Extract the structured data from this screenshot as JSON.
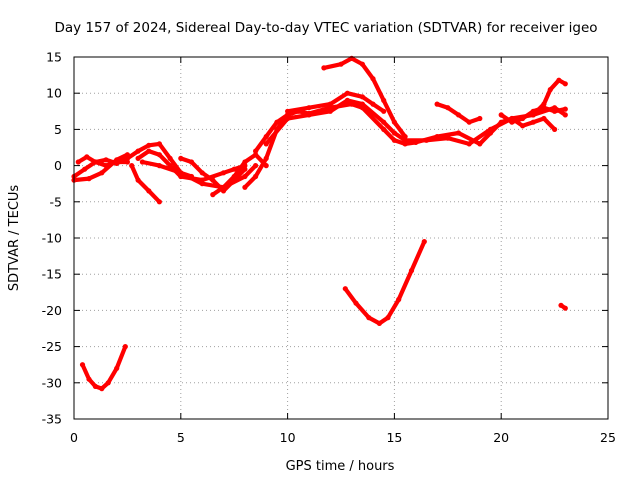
{
  "chart_data": {
    "type": "scatter",
    "title": "Day 157 of 2024, Sidereal Day-to-day VTEC variation (SDTVAR) for receiver igeo",
    "xlabel": "GPS time / hours",
    "ylabel": "SDTVAR / TECUs",
    "xlim": [
      0,
      25
    ],
    "ylim": [
      -35,
      15
    ],
    "xticks": [
      0,
      5,
      10,
      15,
      20,
      25
    ],
    "yticks": [
      -35,
      -30,
      -25,
      -20,
      -15,
      -10,
      -5,
      0,
      5,
      10,
      15
    ],
    "xtick_labels": [
      "0",
      "5",
      "10",
      "15",
      "20",
      "25"
    ],
    "ytick_labels": [
      "-35",
      "-30",
      "-25",
      "-20",
      "-15",
      "-10",
      "-5",
      "0",
      "5",
      "10",
      "15"
    ],
    "grid": true,
    "legend": "none",
    "color": "#ff0000",
    "series": [
      {
        "name": "trace-1",
        "x": [
          0.0,
          0.5,
          1.0,
          1.5,
          2.0,
          2.5
        ],
        "y": [
          -1.5,
          -0.5,
          0.5,
          0.0,
          0.5,
          0.5
        ]
      },
      {
        "name": "trace-2",
        "x": [
          0.0,
          0.7,
          1.3,
          2.0,
          2.5
        ],
        "y": [
          -2.0,
          -1.8,
          -1.0,
          0.8,
          1.5
        ]
      },
      {
        "name": "trace-3",
        "x": [
          0.2,
          0.6,
          1.0,
          1.5,
          2.0,
          2.5
        ],
        "y": [
          0.5,
          1.2,
          0.5,
          0.8,
          0.3,
          1.0
        ]
      },
      {
        "name": "trace-4",
        "x": [
          2.5,
          3.0,
          3.5,
          4.0,
          4.5,
          5.0,
          5.5
        ],
        "y": [
          1.0,
          2.0,
          2.8,
          3.0,
          1.0,
          -1.0,
          -1.5
        ]
      },
      {
        "name": "trace-5",
        "x": [
          2.7,
          3.0,
          3.5,
          4.0
        ],
        "y": [
          0.0,
          -2.0,
          -3.5,
          -5.0
        ]
      },
      {
        "name": "trace-6",
        "x": [
          3.0,
          3.5,
          4.0,
          4.5,
          5.0,
          6.0,
          7.0,
          7.5,
          8.0
        ],
        "y": [
          1.0,
          2.0,
          1.5,
          0.0,
          -1.5,
          -2.0,
          -1.0,
          -0.5,
          0.0
        ]
      },
      {
        "name": "trace-7",
        "x": [
          3.2,
          4.0,
          5.0,
          6.0,
          7.0,
          8.0,
          8.5
        ],
        "y": [
          0.5,
          0.0,
          -1.0,
          -2.5,
          -3.0,
          -1.5,
          0.0
        ]
      },
      {
        "name": "trace-8",
        "x": [
          5.0,
          5.5,
          6.0,
          6.5,
          7.0,
          7.5,
          8.0
        ],
        "y": [
          1.0,
          0.5,
          -1.0,
          -2.0,
          -3.5,
          -2.0,
          -0.5
        ]
      },
      {
        "name": "trace-9",
        "x": [
          6.5,
          7.0,
          7.5,
          8.0,
          8.5,
          9.0
        ],
        "y": [
          -4.0,
          -3.0,
          -1.5,
          0.5,
          1.5,
          0.0
        ]
      },
      {
        "name": "trace-10",
        "x": [
          8.0,
          8.5,
          9.0,
          9.5,
          10.0
        ],
        "y": [
          -3.0,
          -1.5,
          1.0,
          5.0,
          7.0
        ]
      },
      {
        "name": "trace-11",
        "x": [
          8.5,
          9.0,
          9.5,
          10.0,
          10.5,
          11.0,
          12.0,
          13.0,
          13.5,
          14.5,
          15.0,
          15.5,
          16.0,
          17.0,
          18.0,
          19.0,
          19.5,
          20.0,
          20.5,
          21.0,
          21.5,
          22.0,
          22.5
        ],
        "y": [
          2.0,
          4.0,
          6.0,
          7.0,
          7.5,
          7.2,
          8.0,
          8.5,
          8.0,
          5.0,
          3.5,
          3.0,
          3.2,
          4.0,
          4.5,
          3.0,
          4.5,
          6.0,
          6.5,
          5.5,
          6.0,
          6.5,
          5.0
        ]
      },
      {
        "name": "trace-12",
        "x": [
          9.0,
          10.0,
          11.0,
          12.0,
          12.8,
          13.5,
          14.5,
          15.0,
          15.5,
          16.5,
          17.5,
          18.5,
          19.5,
          20.5,
          21.5,
          22.5,
          23.0
        ],
        "y": [
          3.0,
          6.5,
          7.0,
          7.5,
          9.0,
          8.5,
          6.0,
          4.5,
          3.5,
          3.5,
          3.8,
          3.0,
          5.0,
          6.5,
          7.0,
          8.0,
          7.0
        ]
      },
      {
        "name": "trace-13",
        "x": [
          10.0,
          11.0,
          12.0,
          12.8,
          13.5,
          14.0,
          14.5
        ],
        "y": [
          7.5,
          8.0,
          8.5,
          10.0,
          9.5,
          8.5,
          7.5
        ]
      },
      {
        "name": "trace-14",
        "x": [
          11.7,
          12.5,
          13.0,
          13.5,
          14.0,
          14.5,
          15.0,
          15.5
        ],
        "y": [
          13.5,
          14.0,
          14.8,
          14.0,
          12.0,
          9.0,
          6.0,
          4.0
        ]
      },
      {
        "name": "trace-15",
        "x": [
          17.0,
          17.5,
          18.0,
          18.5,
          19.0
        ],
        "y": [
          8.5,
          8.0,
          7.0,
          6.0,
          6.5
        ]
      },
      {
        "name": "trace-16",
        "x": [
          20.0,
          20.5,
          21.0,
          21.5,
          22.0,
          22.5,
          23.0
        ],
        "y": [
          7.0,
          6.0,
          6.5,
          7.5,
          8.0,
          7.5,
          7.8
        ]
      },
      {
        "name": "trace-17",
        "x": [
          21.5,
          22.0,
          22.3,
          22.7,
          23.0
        ],
        "y": [
          7.0,
          8.5,
          10.5,
          11.8,
          11.3
        ]
      },
      {
        "name": "trace-18",
        "x": [
          0.4,
          0.7,
          1.0,
          1.3,
          1.6,
          2.0,
          2.4
        ],
        "y": [
          -27.5,
          -29.5,
          -30.5,
          -30.8,
          -30.0,
          -28.0,
          -25.0
        ]
      },
      {
        "name": "trace-19",
        "x": [
          12.7,
          13.2,
          13.8,
          14.3,
          14.7,
          15.2,
          15.8,
          16.4
        ],
        "y": [
          -17.0,
          -19.0,
          -21.0,
          -21.8,
          -21.0,
          -18.5,
          -14.5,
          -10.5
        ]
      },
      {
        "name": "trace-20",
        "x": [
          22.8,
          23.0
        ],
        "y": [
          -19.3,
          -19.7
        ]
      }
    ]
  }
}
